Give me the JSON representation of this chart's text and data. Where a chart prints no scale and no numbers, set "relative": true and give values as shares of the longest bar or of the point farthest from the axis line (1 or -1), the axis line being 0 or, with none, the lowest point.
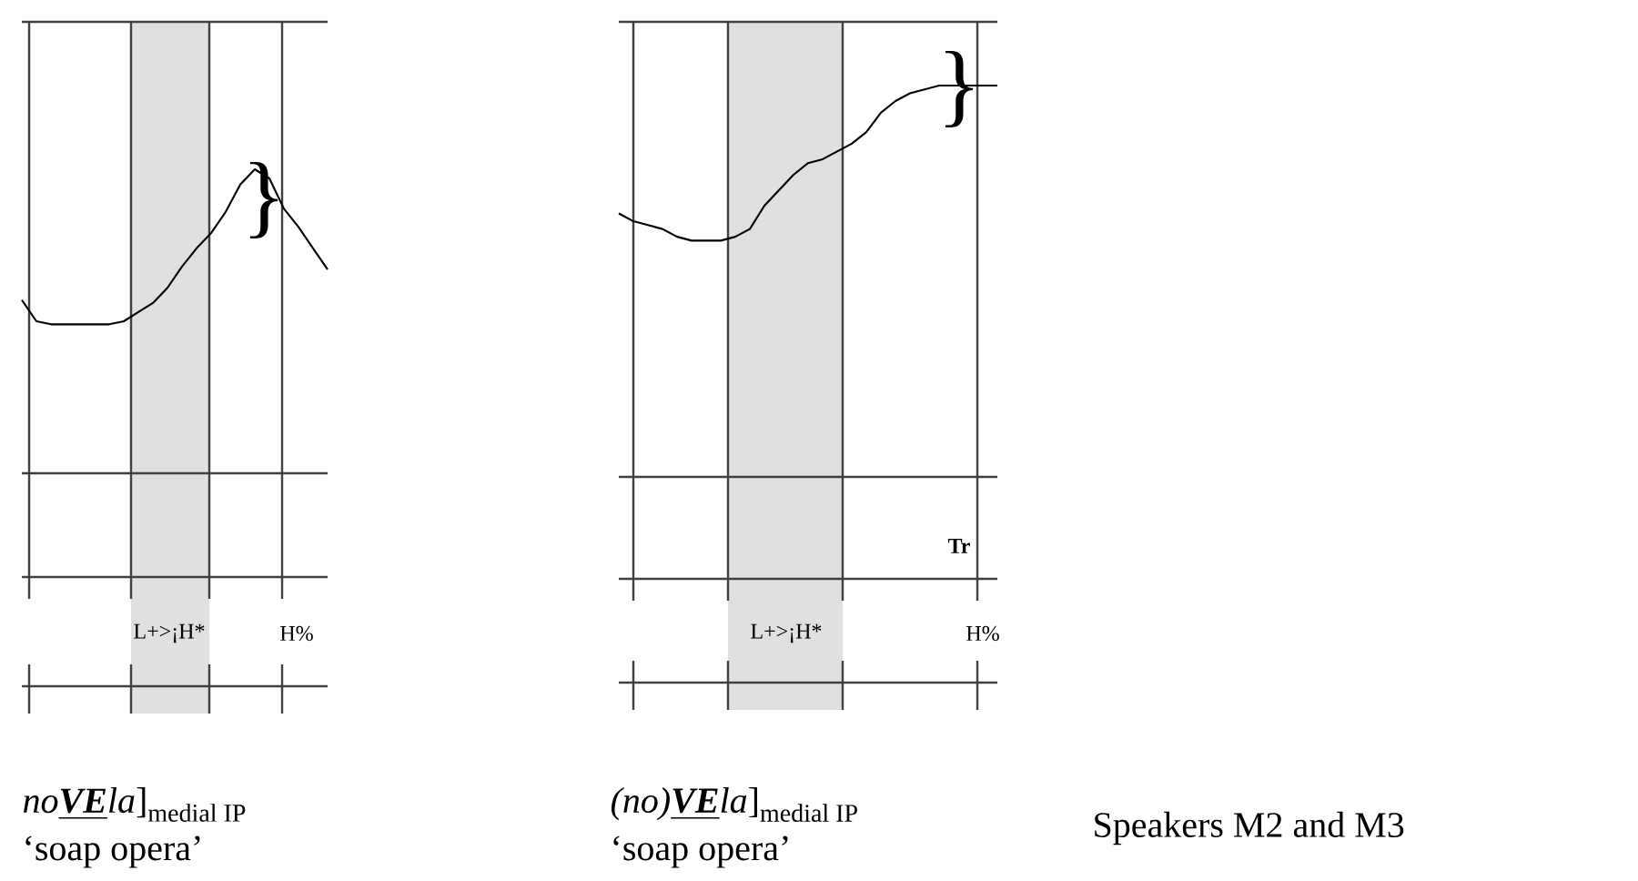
{
  "chart_data": [
    {
      "type": "line",
      "relative": true,
      "categories": [
        null,
        null,
        null,
        null,
        null,
        null,
        null,
        null,
        null,
        null,
        null,
        null,
        null,
        null,
        null,
        null,
        null,
        null,
        null,
        null,
        null,
        null
      ],
      "series": [
        {
          "color": "#000000",
          "values": [
            0.57,
            0.5,
            0.49,
            0.49,
            0.49,
            0.49,
            0.49,
            0.5,
            0.53,
            0.56,
            0.61,
            0.68,
            0.74,
            0.79,
            0.86,
            0.95,
            1,
            0.97,
            0.87,
            0.81,
            0.74,
            0.67
          ]
        }
      ],
      "annotations": [
        "}",
        "L+>¡H*",
        "H%",
        "\\text{\\textit{no}\\underline{\\textbf{\\textit{VE}}}\\textit{la}]}_{\\text{medial IP}}",
        "‘soap opera’"
      ]
    },
    {
      "type": "line",
      "relative": true,
      "categories": [
        null,
        null,
        null,
        null,
        null,
        null,
        null,
        null,
        null,
        null,
        null,
        null,
        null,
        null,
        null,
        null,
        null,
        null,
        null,
        null,
        null,
        null,
        null,
        null,
        null,
        null,
        null
      ],
      "series": [
        {
          "color": "#000000",
          "values": [
            0.67,
            0.65,
            0.64,
            0.63,
            0.61,
            0.6,
            0.6,
            0.6,
            0.61,
            0.63,
            0.69,
            0.73,
            0.77,
            0.8,
            0.81,
            0.83,
            0.85,
            0.88,
            0.93,
            0.96,
            0.98,
            0.99,
            1,
            1,
            1,
            1,
            1
          ]
        }
      ],
      "annotations": [
        "}",
        "Tr",
        "L+>¡H*",
        "H%",
        "\\text{\\textit{(no)}\\underline{\\textbf{\\textit{VE}}}\\textit{la}]}_{\\text{medial IP}}",
        "‘soap opera’",
        "Speakers M2 and M3"
      ]
    }
  ]
}
